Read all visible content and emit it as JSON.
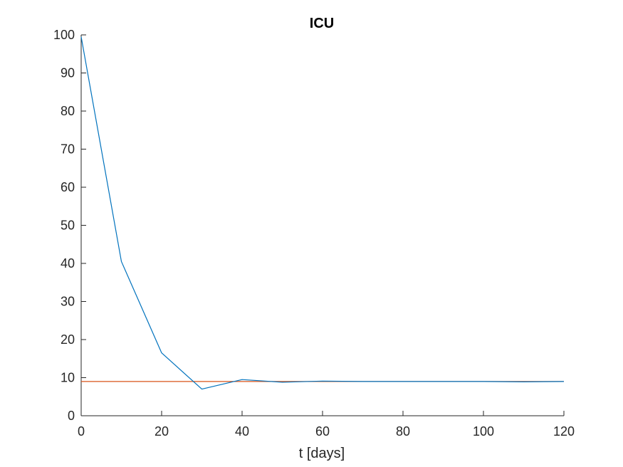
{
  "chart_data": {
    "type": "line",
    "title": "ICU",
    "xlabel": "t [days]",
    "ylabel": "",
    "xlim": [
      0,
      120
    ],
    "ylim": [
      0,
      100
    ],
    "xticks": [
      0,
      20,
      40,
      60,
      80,
      100,
      120
    ],
    "yticks": [
      0,
      10,
      20,
      30,
      40,
      50,
      60,
      70,
      80,
      90,
      100
    ],
    "grid": false,
    "legend": "none",
    "series": [
      {
        "color": "#0072BD",
        "x": [
          0,
          10,
          20,
          30,
          40,
          50,
          60,
          70,
          80,
          90,
          100,
          110,
          120
        ],
        "y": [
          99.5,
          40.5,
          16.5,
          7.0,
          9.5,
          8.8,
          9.1,
          9.0,
          9.0,
          9.0,
          9.0,
          8.9,
          9.0
        ]
      },
      {
        "color": "#D95319",
        "x": [
          0,
          120
        ],
        "y": [
          9,
          9
        ]
      }
    ]
  }
}
